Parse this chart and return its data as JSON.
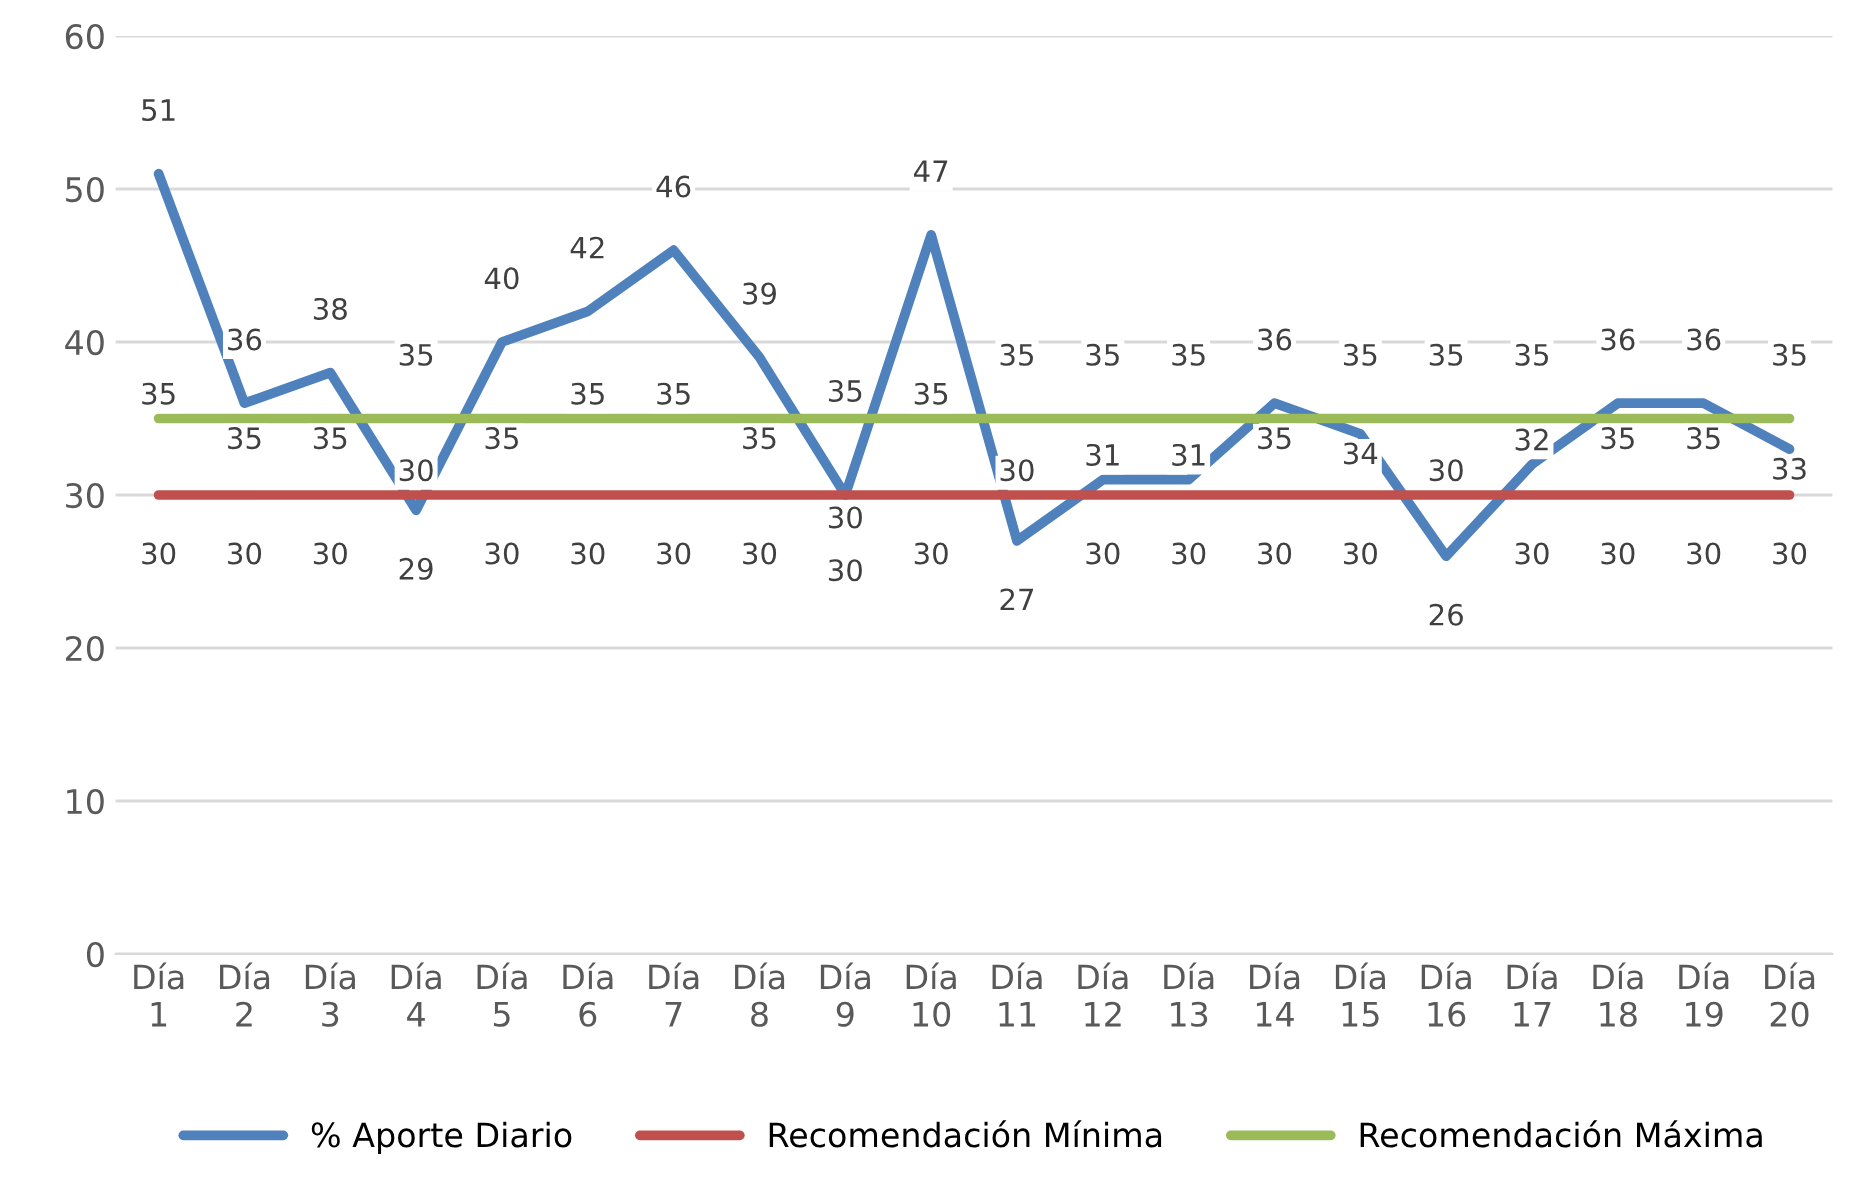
{
  "chart_data": {
    "type": "line",
    "categories": [
      "Día 1",
      "Día 2",
      "Día 3",
      "Día 4",
      "Día 5",
      "Día 6",
      "Día 7",
      "Día 8",
      "Día 9",
      "Día 10",
      "Día 11",
      "Día 12",
      "Día 13",
      "Día 14",
      "Día 15",
      "Día 16",
      "Día 17",
      "Día 18",
      "Día 19",
      "Día 20"
    ],
    "series": [
      {
        "name": "% Aporte Diario",
        "color": "#4f81bd",
        "values": [
          51,
          36,
          38,
          29,
          40,
          42,
          46,
          39,
          30,
          47,
          27,
          31,
          31,
          36,
          34,
          26,
          32,
          36,
          36,
          33
        ]
      },
      {
        "name": "Recomendación Mínima",
        "color": "#c0504d",
        "values": [
          30,
          30,
          30,
          30,
          30,
          30,
          30,
          30,
          30,
          30,
          30,
          30,
          30,
          30,
          30,
          30,
          30,
          30,
          30,
          30
        ]
      },
      {
        "name": "Recomendación Máxima",
        "color": "#9bbb59",
        "values": [
          35,
          35,
          35,
          35,
          35,
          35,
          35,
          35,
          35,
          35,
          35,
          35,
          35,
          35,
          35,
          35,
          35,
          35,
          35,
          35
        ]
      }
    ],
    "ylim": [
      0,
      60
    ],
    "yticks": [
      0,
      10,
      20,
      30,
      40,
      50,
      60
    ],
    "grid": "y",
    "legend": "bottom",
    "data_labels": true,
    "marker": "none",
    "line_style": "solid"
  }
}
